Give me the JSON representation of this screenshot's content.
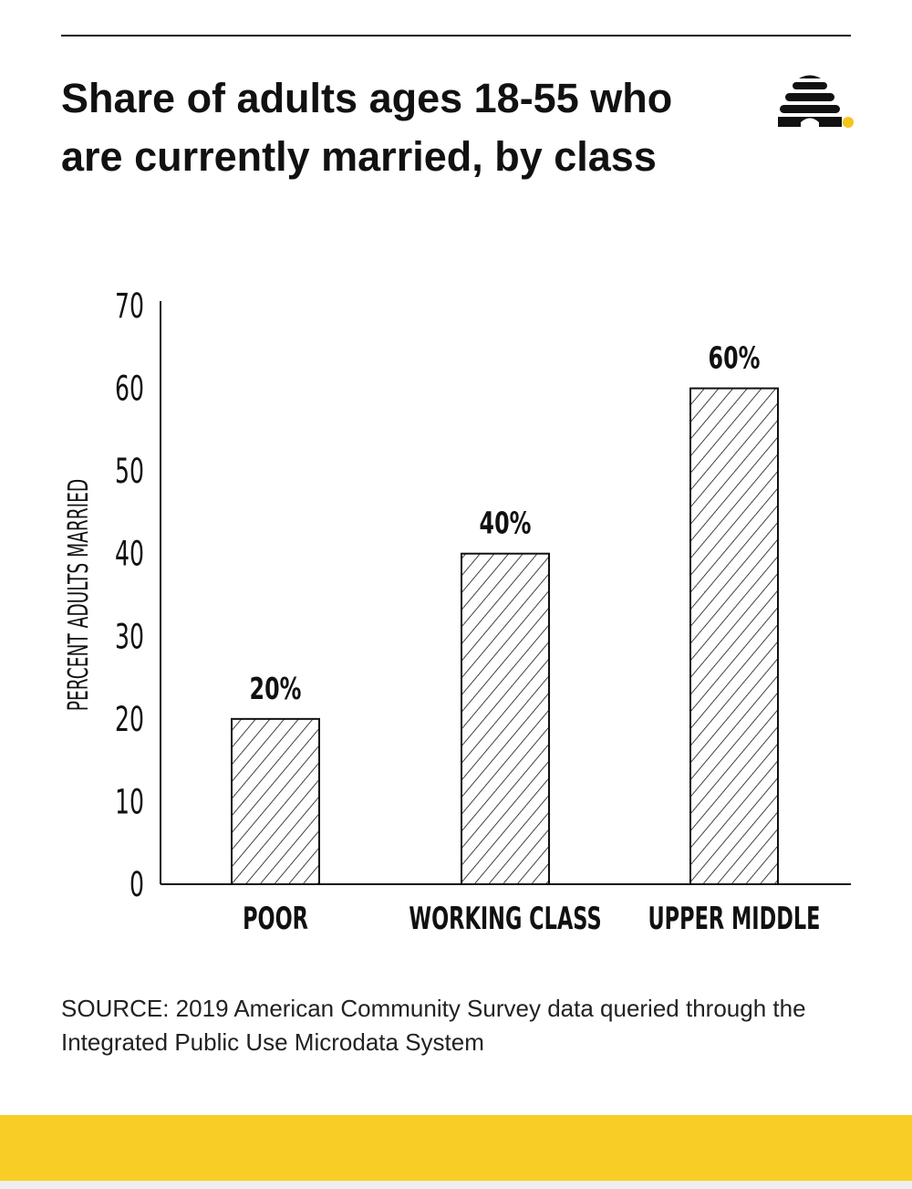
{
  "title": "Share of adults ages 18-55 who are currently married, by class",
  "source": "SOURCE: 2019 American Community Survey data queried through the Integrated Public Use Microdata System",
  "logo": {
    "icon": "beehive-icon",
    "color": "#111111",
    "dot_color": "#F5C518"
  },
  "colors": {
    "accent": "#F8CD26",
    "ink": "#111111"
  },
  "chart_data": {
    "type": "bar",
    "categories": [
      "POOR",
      "WORKING CLASS",
      "UPPER MIDDLE"
    ],
    "values": [
      20,
      40,
      60
    ],
    "data_labels": [
      "20%",
      "40%",
      "60%"
    ],
    "ylabel": "PERCENT ADULTS MARRIED",
    "xlabel": "",
    "ylim": [
      0,
      70
    ],
    "yticks": [
      0,
      10,
      20,
      30,
      40,
      50,
      60,
      70
    ],
    "bar_fill": "diagonal-hatch",
    "grid": false,
    "legend": "none"
  }
}
